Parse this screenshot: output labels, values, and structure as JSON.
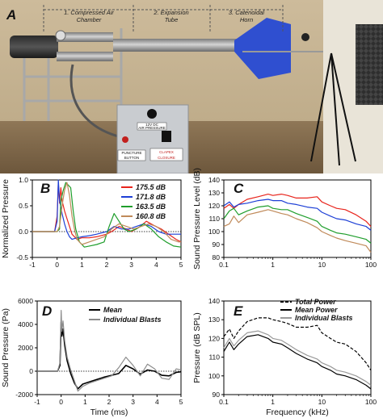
{
  "photo": {
    "panel_letter": "A",
    "labels": [
      "1. Compressed Air Chamber",
      "2. Expansion Tube",
      "3. Catenoidal Horn"
    ],
    "label_lines": [
      [
        "1. Compressed Air",
        "Chamber"
      ],
      [
        "2. Expansion",
        "Tube"
      ],
      [
        "3. Catenoidal",
        "Horn"
      ]
    ],
    "device": {
      "sticker_top": "12V DC",
      "sticker_bottom": "AIR PRESSURE",
      "button_left": [
        "PUNCTURE",
        "BUTTON"
      ],
      "button_right": [
        "CLAPEX",
        "CLOSURE"
      ]
    }
  },
  "chart_data": [
    {
      "panel": "B",
      "type": "line",
      "xlabel": "",
      "ylabel": "Normalized Pressure",
      "xlim": [
        -1,
        5
      ],
      "ylim": [
        -0.5,
        1.0
      ],
      "xticks": [
        -1,
        0,
        1,
        2,
        3,
        4,
        5
      ],
      "yticks": [
        -0.5,
        0.0,
        0.5,
        1.0
      ],
      "ytick_labels": [
        "-0.5",
        "0.0",
        "0.5",
        "1.0"
      ],
      "legend_position": "top-right",
      "series": [
        {
          "name": "175.5 dB",
          "color": "#e8241c",
          "x": [
            -1,
            -0.1,
            0,
            0.05,
            0.1,
            0.15,
            0.2,
            0.3,
            0.4,
            0.5,
            0.6,
            0.8,
            1.0,
            1.3,
            1.6,
            2.0,
            2.2,
            2.5,
            2.8,
            3.0,
            3.3,
            3.6,
            3.9,
            4.2,
            4.5,
            4.8,
            5.0
          ],
          "y": [
            0,
            0,
            0.3,
            0.95,
            0.55,
            0.85,
            0.6,
            0.4,
            0.25,
            0.1,
            -0.05,
            -0.15,
            -0.12,
            -0.12,
            -0.1,
            -0.05,
            0.0,
            0.1,
            0.05,
            0.0,
            0.08,
            0.2,
            0.12,
            0.05,
            -0.05,
            -0.15,
            -0.2
          ]
        },
        {
          "name": "171.8 dB",
          "color": "#1d3fd6",
          "x": [
            -1,
            -0.1,
            0,
            0.05,
            0.1,
            0.2,
            0.3,
            0.4,
            0.5,
            0.6,
            0.8,
            1.0,
            1.3,
            1.6,
            2.0,
            2.3,
            2.6,
            2.9,
            3.2,
            3.5,
            3.8,
            4.1,
            4.4,
            4.7,
            5.0
          ],
          "y": [
            0,
            0,
            0.2,
            1.0,
            0.6,
            0.35,
            0.15,
            0.0,
            -0.1,
            -0.15,
            -0.12,
            -0.1,
            -0.08,
            -0.05,
            0.0,
            0.1,
            0.05,
            0.05,
            0.1,
            0.15,
            0.1,
            0.0,
            -0.05,
            -0.05,
            -0.05
          ]
        },
        {
          "name": "163.5 dB",
          "color": "#1f9e2c",
          "x": [
            -1,
            0,
            0.1,
            0.15,
            0.25,
            0.35,
            0.45,
            0.55,
            0.65,
            0.75,
            0.9,
            1.1,
            1.3,
            1.6,
            1.9,
            2.1,
            2.3,
            2.5,
            2.7,
            2.9,
            3.2,
            3.5,
            3.8,
            4.1,
            4.4,
            4.7,
            5.0
          ],
          "y": [
            0,
            0,
            0.05,
            0.6,
            0.8,
            0.95,
            0.9,
            0.85,
            0.4,
            0.05,
            -0.2,
            -0.3,
            -0.28,
            -0.25,
            -0.2,
            0.1,
            0.35,
            0.2,
            0.05,
            0.0,
            0.05,
            0.15,
            0.05,
            -0.1,
            -0.2,
            -0.28,
            -0.3
          ]
        },
        {
          "name": "160.8 dB",
          "color": "#c08a5a",
          "x": [
            -1,
            0,
            0.1,
            0.2,
            0.3,
            0.4,
            0.5,
            0.6,
            0.7,
            0.8,
            1.0,
            1.3,
            1.6,
            1.9,
            2.2,
            2.5,
            2.8,
            3.1,
            3.4,
            3.7,
            4.0,
            4.3,
            4.6,
            4.9,
            5.0
          ],
          "y": [
            0,
            0,
            0.1,
            0.5,
            0.8,
            0.95,
            0.7,
            0.3,
            0.05,
            -0.15,
            -0.25,
            -0.2,
            -0.15,
            -0.1,
            0.05,
            0.15,
            0.1,
            0.05,
            0.1,
            0.15,
            0.1,
            0.0,
            -0.15,
            -0.2,
            -0.2
          ]
        }
      ]
    },
    {
      "panel": "C",
      "type": "line",
      "xlabel": "",
      "ylabel": "Sound Pressure Level (dB)",
      "xscale": "log",
      "xlim": [
        0.1,
        100
      ],
      "ylim": [
        80,
        140
      ],
      "xticks": [
        0.1,
        1,
        10,
        100
      ],
      "xtick_labels": [
        "0.1",
        "1",
        "10",
        "100"
      ],
      "yticks": [
        80,
        90,
        100,
        110,
        120,
        130,
        140
      ],
      "series": [
        {
          "name": "175.5 dB",
          "color": "#e8241c",
          "x": [
            0.1,
            0.13,
            0.16,
            0.2,
            0.3,
            0.5,
            0.8,
            1.0,
            1.5,
            2,
            3,
            5,
            8,
            10,
            15,
            20,
            30,
            50,
            80,
            100
          ],
          "y": [
            118,
            121,
            118,
            121,
            125,
            127,
            129,
            128,
            129,
            128,
            126,
            126,
            127,
            123,
            120,
            118,
            117,
            113,
            108,
            104
          ]
        },
        {
          "name": "171.8 dB",
          "color": "#1d3fd6",
          "x": [
            0.1,
            0.13,
            0.16,
            0.2,
            0.3,
            0.5,
            0.8,
            1.0,
            1.5,
            2,
            3,
            5,
            8,
            10,
            15,
            20,
            30,
            50,
            80,
            100
          ],
          "y": [
            120,
            123,
            119,
            121,
            122,
            124,
            125,
            124,
            124,
            122,
            121,
            119,
            118,
            115,
            112,
            110,
            109,
            106,
            104,
            101
          ]
        },
        {
          "name": "163.5 dB",
          "color": "#1f9e2c",
          "x": [
            0.1,
            0.13,
            0.16,
            0.2,
            0.3,
            0.5,
            0.8,
            1.0,
            1.5,
            2,
            3,
            5,
            8,
            10,
            15,
            20,
            30,
            50,
            80,
            100
          ],
          "y": [
            110,
            116,
            118,
            113,
            116,
            119,
            120,
            118,
            117,
            117,
            114,
            111,
            108,
            104,
            101,
            99,
            98,
            96,
            94,
            91
          ]
        },
        {
          "name": "160.8 dB",
          "color": "#c08a5a",
          "x": [
            0.1,
            0.13,
            0.16,
            0.2,
            0.3,
            0.5,
            0.8,
            1.0,
            1.5,
            2,
            3,
            5,
            8,
            10,
            15,
            20,
            30,
            50,
            80,
            100
          ],
          "y": [
            104,
            106,
            112,
            107,
            113,
            115,
            117,
            116,
            114,
            113,
            110,
            107,
            103,
            100,
            97,
            95,
            93,
            91,
            89,
            84
          ]
        }
      ]
    },
    {
      "panel": "D",
      "type": "line",
      "xlabel": "Time (ms)",
      "ylabel": "Sound Pressure (Pa)",
      "xlim": [
        -1,
        5
      ],
      "ylim": [
        -2000,
        6000
      ],
      "xticks": [
        -1,
        0,
        1,
        2,
        3,
        4,
        5
      ],
      "yticks": [
        -2000,
        0,
        2000,
        4000,
        6000
      ],
      "legend_position": "top-right",
      "series": [
        {
          "name": "Mean",
          "color": "#000000",
          "x": [
            -1,
            -0.15,
            -0.05,
            0.0,
            0.03,
            0.08,
            0.15,
            0.25,
            0.4,
            0.55,
            0.7,
            0.9,
            1.2,
            1.5,
            1.8,
            2.1,
            2.4,
            2.7,
            3.0,
            3.3,
            3.6,
            3.9,
            4.2,
            4.5,
            4.8,
            5.0
          ],
          "y": [
            0,
            0,
            500,
            4200,
            3000,
            3600,
            2200,
            900,
            -200,
            -1000,
            -1500,
            -1100,
            -900,
            -700,
            -500,
            -350,
            -200,
            500,
            200,
            -250,
            100,
            0,
            -350,
            -400,
            -100,
            -50
          ]
        },
        {
          "name": "Individual Blasts",
          "color": "#8c8c8c",
          "x": [
            -1,
            -0.15,
            -0.05,
            0.0,
            0.03,
            0.08,
            0.15,
            0.25,
            0.4,
            0.55,
            0.7,
            0.9,
            1.2,
            1.5,
            1.8,
            2.1,
            2.4,
            2.7,
            3.0,
            3.3,
            3.6,
            3.9,
            4.2,
            4.5,
            4.8,
            5.0
          ],
          "y": [
            0,
            0,
            700,
            5200,
            3400,
            4300,
            2600,
            1200,
            100,
            -800,
            -1700,
            -1300,
            -1000,
            -800,
            -600,
            -400,
            300,
            1200,
            500,
            -400,
            600,
            200,
            -600,
            -700,
            200,
            100
          ]
        }
      ]
    },
    {
      "panel": "E",
      "type": "line",
      "xlabel": "Frequency (kHz)",
      "ylabel": "Pressure (dB SPL)",
      "xscale": "log",
      "xlim": [
        0.1,
        100
      ],
      "ylim": [
        90,
        140
      ],
      "xticks": [
        0.1,
        1,
        10,
        100
      ],
      "xtick_labels": [
        "0.1",
        "1",
        "10",
        "100"
      ],
      "yticks": [
        90,
        100,
        110,
        120,
        130,
        140
      ],
      "legend_position": "top-right",
      "series": [
        {
          "name": "Total Power",
          "color": "#000000",
          "dash": "4,2",
          "x": [
            0.1,
            0.13,
            0.16,
            0.2,
            0.3,
            0.5,
            0.8,
            1.0,
            1.5,
            2,
            3,
            5,
            8,
            10,
            15,
            20,
            30,
            50,
            80,
            100
          ],
          "y": [
            121,
            125,
            120,
            124,
            129,
            131,
            131,
            130,
            129,
            128,
            126,
            126,
            127,
            123,
            120,
            118,
            117,
            113,
            107,
            103
          ]
        },
        {
          "name": "Mean Power",
          "color": "#000000",
          "x": [
            0.1,
            0.13,
            0.16,
            0.2,
            0.3,
            0.5,
            0.8,
            1.0,
            1.5,
            2,
            3,
            5,
            8,
            10,
            15,
            20,
            30,
            50,
            80,
            100
          ],
          "y": [
            113,
            118,
            114,
            117,
            121,
            122,
            120,
            118,
            117,
            115,
            112,
            109,
            107,
            105,
            103,
            101,
            100,
            98,
            95,
            93
          ]
        },
        {
          "name": "Individual Blasts",
          "color": "#9a9a9a",
          "x": [
            0.1,
            0.13,
            0.16,
            0.2,
            0.3,
            0.5,
            0.8,
            1.0,
            1.5,
            2,
            3,
            5,
            8,
            10,
            15,
            20,
            30,
            50,
            80,
            100
          ],
          "y": [
            115,
            120,
            116,
            119,
            123,
            124,
            122,
            120,
            119,
            117,
            114,
            111,
            109,
            107,
            105,
            103,
            102,
            100,
            97,
            95
          ]
        }
      ]
    }
  ]
}
